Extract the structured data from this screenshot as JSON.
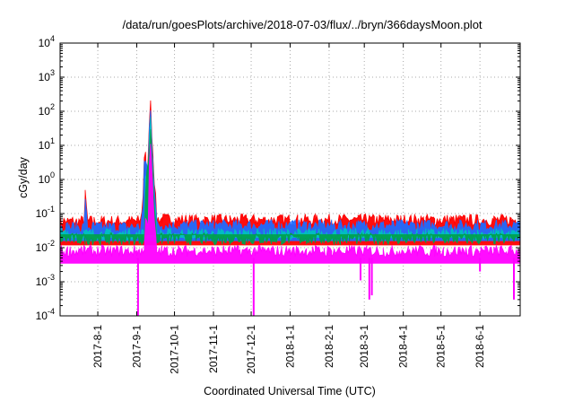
{
  "chart_data": {
    "type": "line",
    "title": "/data/run/goesPlots/archive/2018-07-03/flux/../bryn/366daysMoon.plot",
    "xlabel": "Coordinated Universal Time (UTC)",
    "ylabel": "cGy/day",
    "yscale": "log",
    "ylim": [
      0.0001,
      10000
    ],
    "xlim": [
      "2017-07-02",
      "2018-07-03"
    ],
    "grid": true,
    "y_ticks": [
      {
        "base": "10",
        "exp": "-4"
      },
      {
        "base": "10",
        "exp": "-3"
      },
      {
        "base": "10",
        "exp": "-2"
      },
      {
        "base": "10",
        "exp": "-1"
      },
      {
        "base": "10",
        "exp": "0"
      },
      {
        "base": "10",
        "exp": "1"
      },
      {
        "base": "10",
        "exp": "2"
      },
      {
        "base": "10",
        "exp": "3"
      },
      {
        "base": "10",
        "exp": "4"
      }
    ],
    "x_ticks": [
      {
        "label": "2017-8-1",
        "date": "2017-08-01"
      },
      {
        "label": "2017-9-1",
        "date": "2017-09-01"
      },
      {
        "label": "2017-10-1",
        "date": "2017-10-01"
      },
      {
        "label": "2017-11-1",
        "date": "2017-11-01"
      },
      {
        "label": "2017-12-1",
        "date": "2017-12-01"
      },
      {
        "label": "2018-1-1",
        "date": "2018-01-01"
      },
      {
        "label": "2018-2-1",
        "date": "2018-02-01"
      },
      {
        "label": "2018-3-1",
        "date": "2018-03-01"
      },
      {
        "label": "2018-4-1",
        "date": "2018-04-01"
      },
      {
        "label": "2018-5-1",
        "date": "2018-05-01"
      },
      {
        "label": "2018-6-1",
        "date": "2018-06-01"
      }
    ],
    "series": [
      {
        "color": "#ff0000",
        "x": [
          "2017-07-02",
          "2017-07-15",
          "2017-07-21",
          "2017-07-22",
          "2017-07-24",
          "2017-08-15",
          "2017-09-04",
          "2017-09-06",
          "2017-09-07",
          "2017-09-08",
          "2017-09-09",
          "2017-09-10",
          "2017-09-11",
          "2017-09-12",
          "2017-09-13",
          "2017-09-15",
          "2017-09-17",
          "2017-10-15",
          "2017-11-15",
          "2017-12-15",
          "2018-01-15",
          "2018-02-15",
          "2018-03-15",
          "2018-04-15",
          "2018-05-15",
          "2018-06-15",
          "2018-07-03"
        ],
        "y": [
          0.06,
          0.06,
          0.06,
          0.35,
          0.06,
          0.06,
          0.06,
          0.3,
          5,
          7,
          0.5,
          3,
          60,
          160,
          25,
          1,
          0.07,
          0.065,
          0.065,
          0.065,
          0.065,
          0.065,
          0.065,
          0.065,
          0.065,
          0.065,
          0.065
        ]
      },
      {
        "color": "#1f6bff",
        "x": [
          "2017-07-02",
          "2017-07-21",
          "2017-07-22",
          "2017-07-24",
          "2017-09-04",
          "2017-09-06",
          "2017-09-07",
          "2017-09-08",
          "2017-09-10",
          "2017-09-11",
          "2017-09-12",
          "2017-09-13",
          "2017-09-15",
          "2017-09-17",
          "2018-07-03"
        ],
        "y": [
          0.04,
          0.04,
          0.2,
          0.04,
          0.04,
          0.15,
          2.5,
          4,
          1.5,
          30,
          100,
          15,
          0.6,
          0.045,
          0.045
        ]
      },
      {
        "color": "#00c0c0",
        "x": [
          "2017-07-02",
          "2017-09-07",
          "2017-09-08",
          "2017-09-10",
          "2017-09-11",
          "2017-09-12",
          "2017-09-13",
          "2017-09-15",
          "2017-09-17",
          "2018-07-03"
        ],
        "y": [
          0.025,
          0.025,
          1.5,
          1,
          15,
          60,
          8,
          0.3,
          0.025,
          0.025
        ]
      },
      {
        "color": "#00a050",
        "x": [
          "2017-07-02",
          "2017-09-07",
          "2017-09-08",
          "2017-09-11",
          "2017-09-12",
          "2017-09-13",
          "2017-09-15",
          "2017-09-17",
          "2018-07-03"
        ],
        "y": [
          0.018,
          0.018,
          0.5,
          8,
          30,
          5,
          0.2,
          0.018,
          0.018
        ]
      },
      {
        "color": "#ff00ff",
        "x": [
          "2017-07-02",
          "2017-09-07",
          "2017-09-08",
          "2017-09-10",
          "2017-09-11",
          "2017-09-12",
          "2017-09-13",
          "2017-09-15",
          "2017-09-17",
          "2018-07-03"
        ],
        "y": [
          0.008,
          0.008,
          0.1,
          0.05,
          3,
          8,
          2,
          0.05,
          0.008,
          0.008
        ]
      }
    ],
    "dips": [
      {
        "date": "2017-09-02",
        "y": 0.0001
      },
      {
        "date": "2017-12-03",
        "y": 0.0001
      },
      {
        "date": "2018-02-26",
        "y": 0.0011
      },
      {
        "date": "2018-03-05",
        "y": 0.0003
      },
      {
        "date": "2018-03-07",
        "y": 0.0004
      },
      {
        "date": "2018-06-01",
        "y": 0.002
      },
      {
        "date": "2018-06-28",
        "y": 0.0003
      }
    ]
  }
}
